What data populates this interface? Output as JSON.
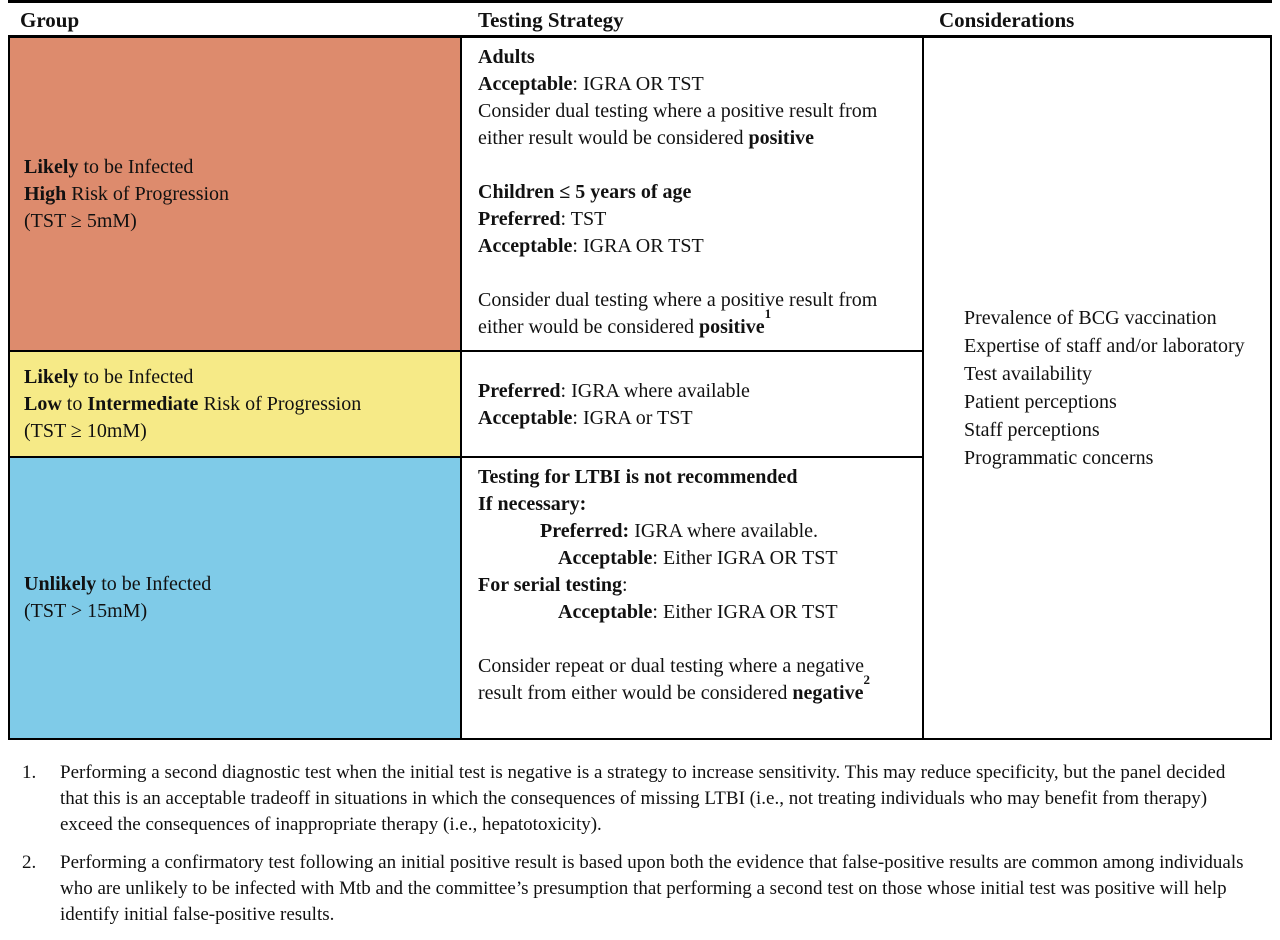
{
  "header": {
    "group": "Group",
    "testing": "Testing Strategy",
    "considerations": "Considerations"
  },
  "rows": [
    {
      "color": "#dd8b6d",
      "group": [
        {
          "segments": [
            {
              "t": "Likely",
              "b": true
            },
            {
              "t": " to be Infected"
            }
          ]
        },
        {
          "segments": [
            {
              "t": "High",
              "b": true
            },
            {
              "t": " Risk of Progression"
            }
          ]
        },
        {
          "segments": [
            {
              "t": "(TST ≥ 5mM)"
            }
          ]
        }
      ],
      "strategy": [
        {
          "segments": [
            {
              "t": "Adults",
              "b": true
            }
          ]
        },
        {
          "segments": [
            {
              "t": "Acceptable",
              "b": true
            },
            {
              "t": ": IGRA OR TST"
            }
          ]
        },
        {
          "segments": [
            {
              "t": "Consider dual testing where a positive result from either result would be considered "
            },
            {
              "t": "positive",
              "b": true
            }
          ]
        },
        {
          "blank": true
        },
        {
          "segments": [
            {
              "t": "Children ≤ 5 years of age",
              "b": true
            }
          ]
        },
        {
          "segments": [
            {
              "t": "Preferred",
              "b": true
            },
            {
              "t": ": TST"
            }
          ]
        },
        {
          "segments": [
            {
              "t": "Acceptable",
              "b": true
            },
            {
              "t": ": IGRA OR TST"
            }
          ]
        },
        {
          "blank": true
        },
        {
          "segments": [
            {
              "t": "Consider dual testing where a positive result from either would be considered "
            },
            {
              "t": "positive",
              "b": true
            },
            {
              "t": "1",
              "b": true,
              "sup": true
            }
          ]
        }
      ]
    },
    {
      "color": "#f6ea87",
      "group": [
        {
          "segments": [
            {
              "t": "Likely",
              "b": true
            },
            {
              "t": " to be Infected"
            }
          ]
        },
        {
          "segments": [
            {
              "t": "Low",
              "b": true
            },
            {
              "t": " to "
            },
            {
              "t": "Intermediate",
              "b": true
            },
            {
              "t": " Risk of Progression"
            }
          ]
        },
        {
          "segments": [
            {
              "t": "(TST ≥ 10mM)"
            }
          ]
        }
      ],
      "strategy": [
        {
          "segments": [
            {
              "t": "Preferred",
              "b": true
            },
            {
              "t": ": IGRA where available"
            }
          ]
        },
        {
          "segments": [
            {
              "t": "Acceptable",
              "b": true
            },
            {
              "t": ": IGRA or TST"
            }
          ]
        }
      ]
    },
    {
      "color": "#7fcbe8",
      "group": [
        {
          "segments": [
            {
              "t": "Unlikely",
              "b": true
            },
            {
              "t": " to be Infected"
            }
          ]
        },
        {
          "segments": [
            {
              "t": "(TST > 15mM)"
            }
          ]
        }
      ],
      "strategy": [
        {
          "segments": [
            {
              "t": "Testing for LTBI is not recommended",
              "b": true
            }
          ]
        },
        {
          "segments": [
            {
              "t": "If necessary:",
              "b": true
            }
          ]
        },
        {
          "indent": 1,
          "segments": [
            {
              "t": "Preferred:",
              "b": true
            },
            {
              "t": " IGRA where available."
            }
          ]
        },
        {
          "indent": 2,
          "segments": [
            {
              "t": "Acceptable",
              "b": true
            },
            {
              "t": ": Either IGRA OR TST"
            }
          ]
        },
        {
          "segments": [
            {
              "t": "For serial testing",
              "b": true
            },
            {
              "t": ":"
            }
          ]
        },
        {
          "indent": 2,
          "segments": [
            {
              "t": "Acceptable",
              "b": true
            },
            {
              "t": ": Either IGRA OR TST"
            }
          ]
        },
        {
          "blank": true
        },
        {
          "segments": [
            {
              "t": "Consider repeat or dual testing where a negative result from either would be considered "
            },
            {
              "t": "negative",
              "b": true
            },
            {
              "t": "2",
              "b": true,
              "sup": true
            }
          ]
        }
      ]
    }
  ],
  "considerations": [
    "Prevalence of BCG vaccination",
    "Expertise of staff and/or laboratory",
    "Test availability",
    "Patient perceptions",
    "Staff perceptions",
    "Programmatic concerns"
  ],
  "footnotes": [
    {
      "num": "1.",
      "text": "Performing a second diagnostic test when the initial test is negative is a strategy to increase sensitivity. This may reduce specificity, but the panel decided that this is an acceptable tradeoff in situations in which the consequences of missing LTBI (i.e., not treating individuals who may benefit from therapy) exceed the consequences of inappropriate therapy (i.e., hepatotoxicity)."
    },
    {
      "num": "2.",
      "text": "Performing a confirmatory test following an initial positive result is based upon both the evidence that false-positive results are common among individuals who are unlikely to be infected with Mtb and the committee’s presumption that performing a second test on those whose initial test was positive will help identify initial false-positive results."
    }
  ]
}
